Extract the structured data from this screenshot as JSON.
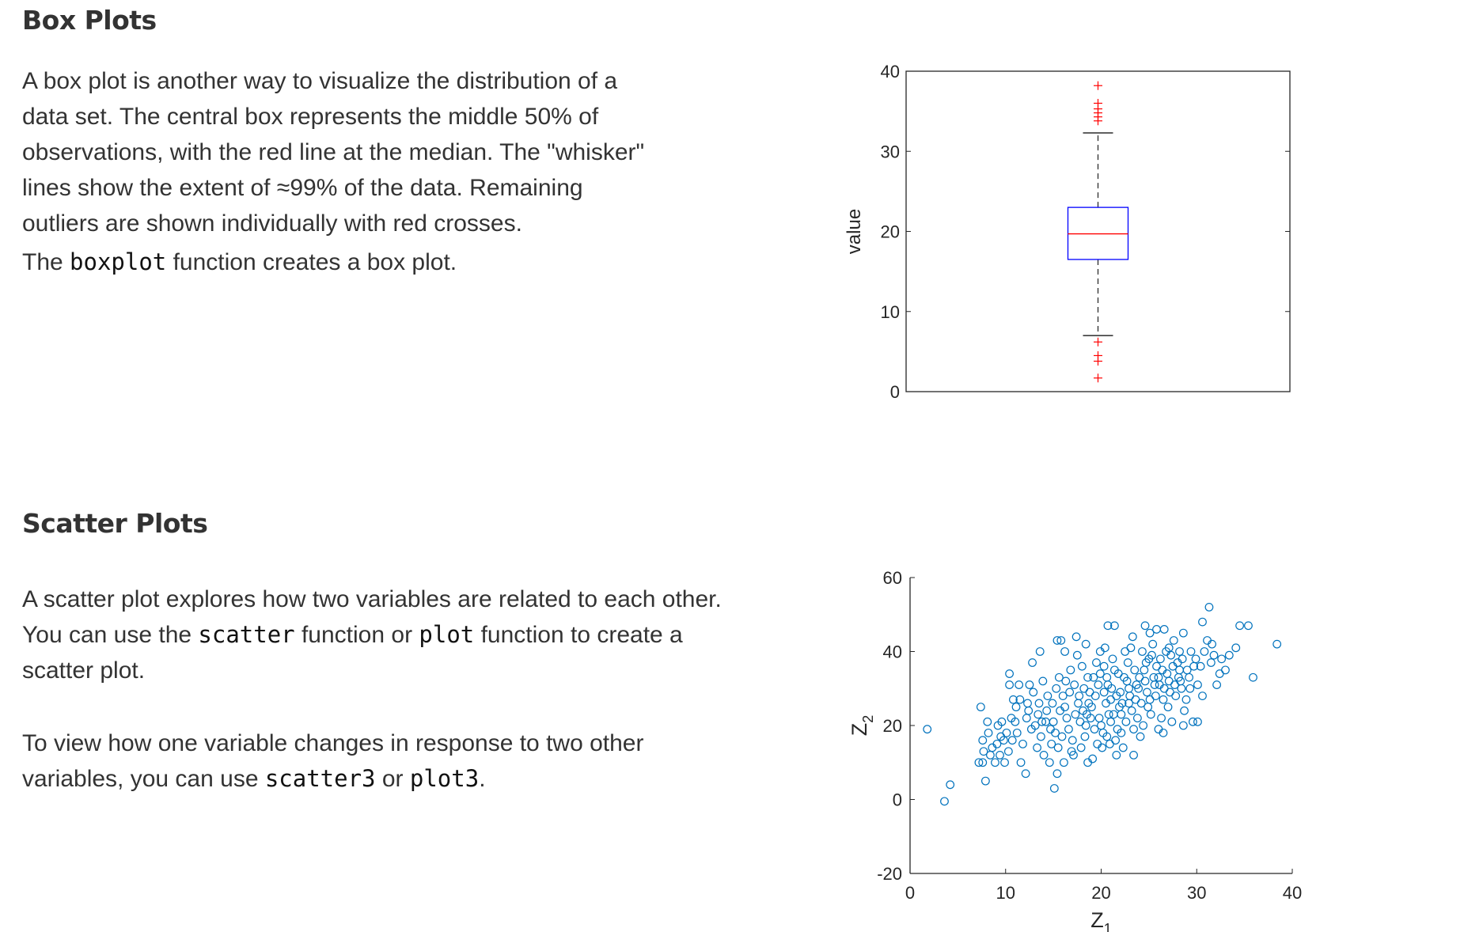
{
  "box_section": {
    "title": "Box Plots",
    "p1": "A box plot is another way to visualize the distribution of a data set. The central box represents the middle 50% of observations, with the red line at the median. The \"whisker\" lines show the extent of ≈99% of the data. Remaining outliers are shown individually with red crosses.",
    "p2_before": "The ",
    "p2_code": "boxplot",
    "p2_after": " function creates a box plot."
  },
  "scatter_section": {
    "title": "Scatter Plots",
    "p1_before": "A scatter plot explores how two variables are related to each other. You can use the ",
    "p1_code1": "scatter",
    "p1_mid": " function or ",
    "p1_code2": "plot",
    "p1_after": " function to create a scatter plot.",
    "p2_before": "To view how one variable changes in response to two other variables, you can use ",
    "p2_code1": "scatter3",
    "p2_mid": " or ",
    "p2_code2": "plot3",
    "p2_after": "."
  },
  "chart_data": [
    {
      "type": "box",
      "ylabel": "value",
      "xlabel": "",
      "ylim": [
        0,
        40
      ],
      "yticks": [
        "0",
        "10",
        "20",
        "30",
        "40"
      ],
      "stats": {
        "whisker_low": 7,
        "q1": 16.5,
        "median": 19.7,
        "q3": 23,
        "whisker_high": 32.3
      },
      "outliers": [
        1.7,
        3.8,
        4.5,
        6.2,
        33.8,
        34.3,
        34.8,
        35.3,
        36,
        38.2
      ],
      "colors": {
        "box": "#0000ff",
        "median": "#ff0000",
        "whisker": "#000000",
        "outlier": "#ff0000",
        "axes": "#262626"
      }
    },
    {
      "type": "scatter",
      "xlabel": "Z",
      "xlabel_sub": "1",
      "ylabel": "Z",
      "ylabel_sub": "2",
      "xlim": [
        0,
        40
      ],
      "ylim": [
        -20,
        60
      ],
      "xticks": [
        "0",
        "10",
        "20",
        "30",
        "40"
      ],
      "yticks": [
        "-20",
        "0",
        "20",
        "40",
        "60"
      ],
      "marker": "circle-open",
      "color": "#0072bd",
      "points": [
        [
          1.8,
          19
        ],
        [
          3.6,
          -0.5
        ],
        [
          4.2,
          4
        ],
        [
          7.6,
          10
        ],
        [
          7.9,
          5
        ],
        [
          7.2,
          10
        ],
        [
          7.7,
          13
        ],
        [
          8.2,
          18
        ],
        [
          8.9,
          10
        ],
        [
          9.4,
          12
        ],
        [
          9.9,
          10
        ],
        [
          10.4,
          31
        ],
        [
          10.4,
          34
        ],
        [
          11.4,
          31
        ],
        [
          12.5,
          31
        ],
        [
          12.8,
          37
        ],
        [
          13.6,
          40
        ],
        [
          15.1,
          3
        ],
        [
          15.4,
          43
        ],
        [
          15.8,
          43
        ],
        [
          16.2,
          40
        ],
        [
          17.4,
          44
        ],
        [
          18.4,
          42
        ],
        [
          20.7,
          47
        ],
        [
          21.4,
          47
        ],
        [
          24.6,
          47
        ],
        [
          25.1,
          45
        ],
        [
          25.8,
          46
        ],
        [
          26.6,
          46
        ],
        [
          27.1,
          41
        ],
        [
          28.6,
          45
        ],
        [
          29.9,
          38
        ],
        [
          30.6,
          48
        ],
        [
          31.3,
          52
        ],
        [
          31.1,
          43
        ],
        [
          31.6,
          42
        ],
        [
          32.4,
          34
        ],
        [
          33.4,
          39
        ],
        [
          34.1,
          41
        ],
        [
          34.5,
          47
        ],
        [
          35.4,
          47
        ],
        [
          35.9,
          33
        ],
        [
          38.4,
          42
        ],
        [
          30.6,
          28
        ],
        [
          30.1,
          21
        ],
        [
          29.6,
          21
        ],
        [
          28.6,
          20
        ],
        [
          28.2,
          35
        ],
        [
          28.4,
          30
        ],
        [
          26.5,
          18
        ],
        [
          23.4,
          12
        ],
        [
          22.1,
          18
        ],
        [
          20.6,
          17
        ],
        [
          20.1,
          14
        ],
        [
          19.1,
          11
        ],
        [
          18.6,
          10
        ],
        [
          17.1,
          12
        ],
        [
          16.1,
          10
        ],
        [
          15.4,
          7
        ],
        [
          14.6,
          10
        ],
        [
          12.1,
          7
        ],
        [
          11.6,
          10
        ],
        [
          10.1,
          18
        ],
        [
          9.6,
          21
        ],
        [
          9.1,
          15
        ],
        [
          8.6,
          14
        ],
        [
          10.6,
          22
        ],
        [
          11.1,
          25
        ],
        [
          12.4,
          24
        ],
        [
          13.1,
          20
        ],
        [
          8.1,
          21
        ],
        [
          7.4,
          25
        ],
        [
          7.6,
          16
        ],
        [
          9.2,
          20
        ],
        [
          10.8,
          27
        ],
        [
          11.5,
          27
        ],
        [
          12.3,
          26
        ],
        [
          13.4,
          23
        ],
        [
          14.2,
          21
        ],
        [
          13.7,
          17
        ],
        [
          14.8,
          15
        ],
        [
          15.2,
          18
        ],
        [
          16.4,
          22
        ],
        [
          16.0,
          28
        ],
        [
          15.6,
          33
        ],
        [
          16.8,
          35
        ],
        [
          17.2,
          31
        ],
        [
          17.6,
          26
        ],
        [
          18.1,
          24
        ],
        [
          18.4,
          20
        ],
        [
          18.8,
          29
        ],
        [
          19.2,
          33
        ],
        [
          19.5,
          37
        ],
        [
          19.9,
          40
        ],
        [
          20.3,
          36
        ],
        [
          20.7,
          31
        ],
        [
          21.0,
          27
        ],
        [
          21.3,
          23
        ],
        [
          21.7,
          19
        ],
        [
          22.0,
          29
        ],
        [
          22.4,
          33
        ],
        [
          22.8,
          37
        ],
        [
          23.1,
          41
        ],
        [
          23.5,
          35
        ],
        [
          23.9,
          30
        ],
        [
          24.2,
          26
        ],
        [
          24.6,
          32
        ],
        [
          25.0,
          38
        ],
        [
          25.4,
          42
        ],
        [
          25.8,
          36
        ],
        [
          26.1,
          31
        ],
        [
          26.5,
          27
        ],
        [
          26.9,
          34
        ],
        [
          27.3,
          39
        ],
        [
          27.6,
          43
        ],
        [
          28.0,
          37
        ],
        [
          28.3,
          32
        ],
        [
          28.7,
          24
        ],
        [
          29.0,
          35
        ],
        [
          29.4,
          40
        ],
        [
          29.7,
          36
        ],
        [
          30.1,
          31
        ],
        [
          14.9,
          26
        ],
        [
          15.3,
          30
        ],
        [
          15.7,
          24
        ],
        [
          16.6,
          19
        ],
        [
          17.0,
          16
        ],
        [
          17.9,
          14
        ],
        [
          18.3,
          17
        ],
        [
          19.6,
          15
        ],
        [
          20.2,
          18
        ],
        [
          20.9,
          15
        ],
        [
          21.5,
          16
        ],
        [
          22.6,
          21
        ],
        [
          23.2,
          24
        ],
        [
          23.8,
          22
        ],
        [
          24.4,
          20
        ],
        [
          25.2,
          23
        ],
        [
          25.7,
          28
        ],
        [
          26.3,
          22
        ],
        [
          27.0,
          25
        ],
        [
          27.8,
          28
        ],
        [
          28.9,
          27
        ],
        [
          19.0,
          25
        ],
        [
          19.4,
          28
        ],
        [
          19.8,
          22
        ],
        [
          20.5,
          26
        ],
        [
          21.1,
          30
        ],
        [
          21.8,
          34
        ],
        [
          22.2,
          26
        ],
        [
          22.9,
          30
        ],
        [
          23.6,
          27
        ],
        [
          24.0,
          33
        ],
        [
          24.8,
          29
        ],
        [
          25.5,
          33
        ],
        [
          26.2,
          38
        ],
        [
          27.1,
          32
        ],
        [
          27.5,
          36
        ],
        [
          28.2,
          40
        ],
        [
          17.5,
          39
        ],
        [
          18.0,
          36
        ],
        [
          18.6,
          33
        ],
        [
          16.2,
          25
        ],
        [
          16.7,
          29
        ],
        [
          17.3,
          23
        ],
        [
          12.7,
          19
        ],
        [
          13.3,
          14
        ],
        [
          14.0,
          12
        ],
        [
          11.8,
          15
        ],
        [
          11.2,
          18
        ],
        [
          10.3,
          13
        ],
        [
          9.8,
          16
        ],
        [
          15.0,
          21
        ],
        [
          14.4,
          28
        ],
        [
          13.9,
          32
        ],
        [
          20.4,
          41
        ],
        [
          21.2,
          38
        ],
        [
          22.5,
          40
        ],
        [
          23.3,
          44
        ],
        [
          24.3,
          40
        ],
        [
          25.3,
          39
        ],
        [
          26.8,
          40
        ],
        [
          29.2,
          33
        ],
        [
          30.4,
          36
        ],
        [
          31.5,
          37
        ],
        [
          32.1,
          31
        ],
        [
          27.4,
          21
        ],
        [
          26.0,
          19
        ],
        [
          24.1,
          17
        ],
        [
          22.3,
          14
        ],
        [
          21.6,
          12
        ],
        [
          19.3,
          19
        ],
        [
          18.9,
          22
        ],
        [
          20.0,
          20
        ],
        [
          20.8,
          23
        ],
        [
          21.9,
          25
        ],
        [
          23.0,
          28
        ],
        [
          23.7,
          31
        ],
        [
          24.5,
          35
        ],
        [
          25.6,
          31
        ],
        [
          26.4,
          35
        ],
        [
          27.2,
          29
        ],
        [
          28.1,
          33
        ],
        [
          16.3,
          32
        ],
        [
          17.7,
          28
        ],
        [
          18.2,
          30
        ],
        [
          19.7,
          31
        ],
        [
          20.6,
          33
        ],
        [
          21.4,
          35
        ],
        [
          22.7,
          32
        ],
        [
          24.7,
          37
        ],
        [
          12.9,
          29
        ],
        [
          13.5,
          26
        ],
        [
          14.3,
          24
        ],
        [
          15.5,
          14
        ],
        [
          16.9,
          13
        ],
        [
          18.7,
          26
        ],
        [
          19.9,
          34
        ],
        [
          21.0,
          21
        ],
        [
          22.1,
          23
        ],
        [
          23.4,
          19
        ],
        [
          24.9,
          25
        ],
        [
          26.6,
          30
        ],
        [
          28.5,
          38
        ],
        [
          29.3,
          30
        ],
        [
          17.8,
          21
        ],
        [
          18.5,
          23
        ],
        [
          20.3,
          29
        ],
        [
          21.6,
          28
        ],
        [
          22.9,
          26
        ],
        [
          25.1,
          27
        ],
        [
          26.0,
          33
        ],
        [
          27.7,
          31
        ],
        [
          15.9,
          17
        ],
        [
          14.7,
          19
        ],
        [
          13.8,
          21
        ],
        [
          12.2,
          22
        ],
        [
          11.0,
          21
        ],
        [
          10.7,
          16
        ],
        [
          9.5,
          17
        ],
        [
          8.4,
          12
        ],
        [
          30.8,
          40
        ],
        [
          31.8,
          39
        ],
        [
          32.6,
          38
        ],
        [
          33.0,
          35
        ]
      ]
    }
  ]
}
